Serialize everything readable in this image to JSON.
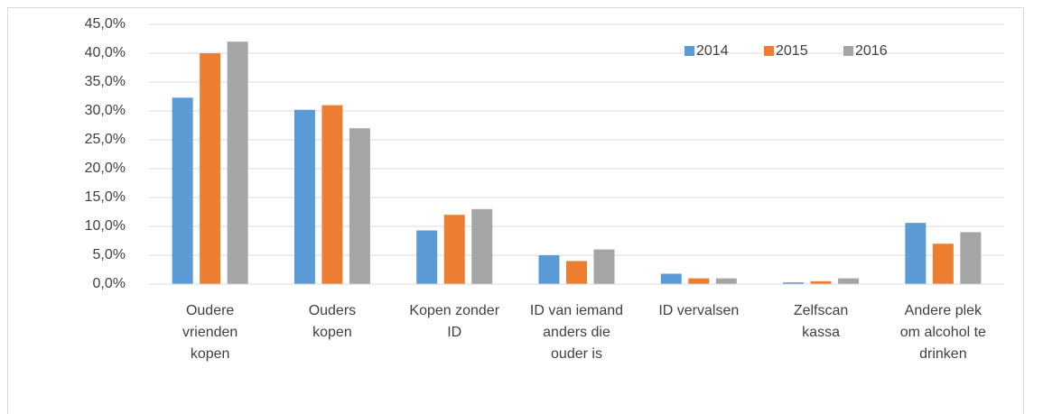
{
  "chart_data": {
    "type": "bar",
    "categories": [
      "Oudere\nvrienden\nkopen",
      "Ouders\nkopen",
      "Kopen zonder\nID",
      "ID van iemand\nanders die\nouder is",
      "ID vervalsen",
      "Zelfscan\nkassa",
      "Andere plek\nom alcohol te\ndrinken"
    ],
    "series": [
      {
        "name": "2014",
        "color": "#5b9bd5",
        "values": [
          32.3,
          30.2,
          9.3,
          5.0,
          1.8,
          0.3,
          10.6
        ]
      },
      {
        "name": "2015",
        "color": "#ed7d31",
        "values": [
          40.0,
          31.0,
          12.0,
          4.0,
          1.0,
          0.5,
          7.0
        ]
      },
      {
        "name": "2016",
        "color": "#a5a5a5",
        "values": [
          42.0,
          27.0,
          13.0,
          6.0,
          1.0,
          1.0,
          9.0
        ]
      }
    ],
    "ylim": [
      0,
      45
    ],
    "yticks": [
      {
        "value": 0,
        "label": "0,0%"
      },
      {
        "value": 5,
        "label": "5,0%"
      },
      {
        "value": 10,
        "label": "10,0%"
      },
      {
        "value": 15,
        "label": "15,0%"
      },
      {
        "value": 20,
        "label": "20,0%"
      },
      {
        "value": 25,
        "label": "25,0%"
      },
      {
        "value": 30,
        "label": "30,0%"
      },
      {
        "value": 35,
        "label": "35,0%"
      },
      {
        "value": 40,
        "label": "40,0%"
      },
      {
        "value": 45,
        "label": "45,0%"
      }
    ],
    "grid": true,
    "legend": "top-right"
  }
}
